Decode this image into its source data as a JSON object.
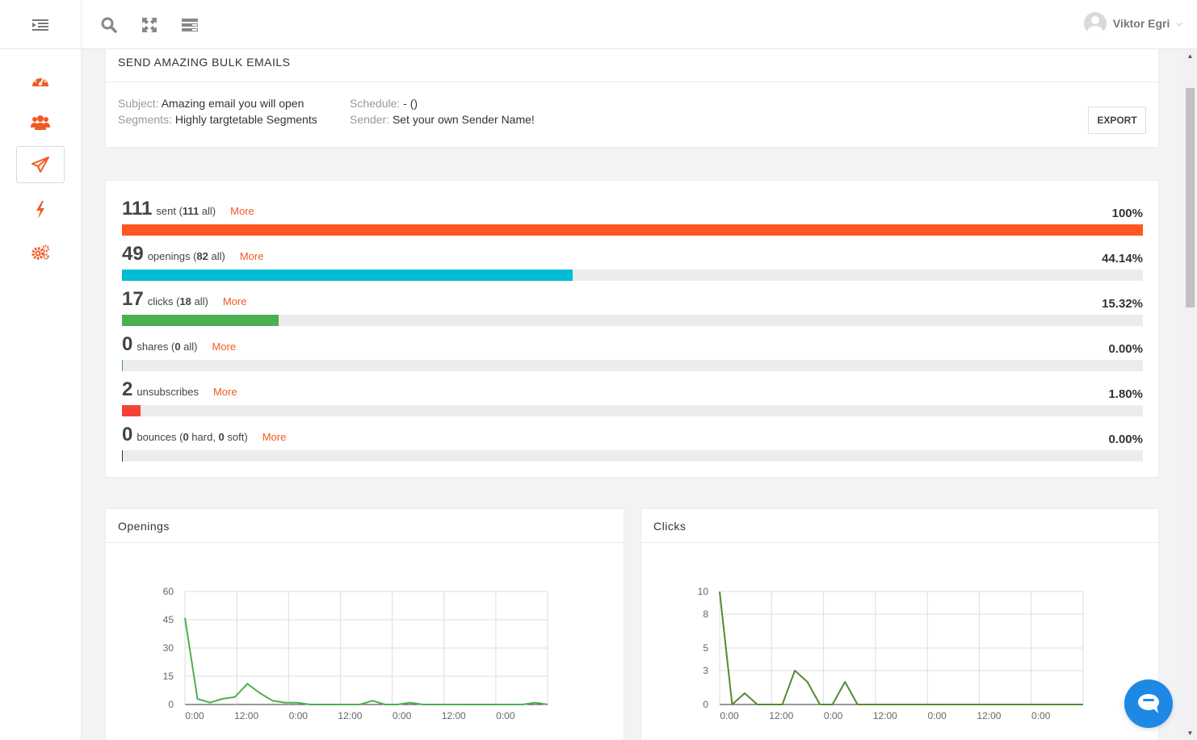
{
  "topbar": {
    "icons": [
      "menu-toggle-icon",
      "search-icon",
      "fullscreen-icon",
      "layout-icon"
    ],
    "user_name": "Viktor Egri",
    "caret": "⌵"
  },
  "sidebar": {
    "items": [
      {
        "icon": "dashboard-icon",
        "active": false
      },
      {
        "icon": "users-icon",
        "active": false
      },
      {
        "icon": "send-icon",
        "active": true
      },
      {
        "icon": "lightning-icon",
        "active": false
      },
      {
        "icon": "settings-icon",
        "active": false
      }
    ],
    "accent": "#f15a24"
  },
  "campaign": {
    "title": "SEND AMAZING BULK EMAILS",
    "subject_key": "Subject:",
    "subject_value": "Amazing email you will open",
    "segments_key": "Segments:",
    "segments_value": "Highly targtetable Segments",
    "schedule_key": "Schedule:",
    "schedule_value": "- ()",
    "sender_key": "Sender:",
    "sender_value": "Set your own Sender Name!",
    "export_label": "EXPORT"
  },
  "stats": [
    {
      "num": "111",
      "pre": "sent (",
      "bold1": "111",
      "mid": " all)",
      "bold2": "",
      "post": "",
      "more": "More",
      "pct": "100%",
      "fraction": 1.0,
      "color": "#ff5722"
    },
    {
      "num": "49",
      "pre": "openings (",
      "bold1": "82",
      "mid": " all)",
      "bold2": "",
      "post": "",
      "more": "More",
      "pct": "44.14%",
      "fraction": 0.4414,
      "color": "#00bcd4"
    },
    {
      "num": "17",
      "pre": "clicks (",
      "bold1": "18",
      "mid": " all)",
      "bold2": "",
      "post": "",
      "more": "More",
      "pct": "15.32%",
      "fraction": 0.1532,
      "color": "#4caf50"
    },
    {
      "num": "0",
      "pre": "shares (",
      "bold1": "0",
      "mid": " all)",
      "bold2": "",
      "post": "",
      "more": "More",
      "pct": "0.00%",
      "fraction": 0.0,
      "color": "#3f8fb5"
    },
    {
      "num": "2",
      "pre": "unsubscribes",
      "bold1": "",
      "mid": "",
      "bold2": "",
      "post": "",
      "more": "More",
      "pct": "1.80%",
      "fraction": 0.018,
      "color": "#f44336"
    },
    {
      "num": "0",
      "pre": "bounces (",
      "bold1": "0",
      "mid": " hard, ",
      "bold2": "0",
      "post": " soft)",
      "more": "More",
      "pct": "0.00%",
      "fraction": 0.0,
      "color": "#333333"
    }
  ],
  "chart_data": [
    {
      "type": "line",
      "title": "Openings",
      "x_tick_labels": [
        "0:00",
        "12:00",
        "0:00",
        "12:00",
        "0:00",
        "12:00",
        "0:00"
      ],
      "y_ticks": [
        0,
        15,
        30,
        45,
        60
      ],
      "ylim": [
        0,
        60
      ],
      "grid": true,
      "color": "#4caf50",
      "series": [
        {
          "values": [
            46,
            3,
            1,
            3,
            4,
            11,
            6,
            2,
            1,
            1,
            0,
            0,
            0,
            0,
            0,
            2,
            0,
            0,
            1,
            0,
            0,
            0,
            0,
            0,
            0,
            0,
            0,
            0,
            1,
            0
          ]
        }
      ]
    },
    {
      "type": "line",
      "title": "Clicks",
      "x_tick_labels": [
        "0:00",
        "12:00",
        "0:00",
        "12:00",
        "0:00",
        "12:00",
        "0:00"
      ],
      "y_ticks": [
        0,
        3,
        5,
        8,
        10
      ],
      "ylim": [
        0,
        10
      ],
      "grid": true,
      "color": "#558b2f",
      "series": [
        {
          "values": [
            10,
            0,
            1,
            0,
            0,
            0,
            3,
            2,
            0,
            0,
            2,
            0,
            0,
            0,
            0,
            0,
            0,
            0,
            0,
            0,
            0,
            0,
            0,
            0,
            0,
            0,
            0,
            0,
            0,
            0
          ]
        }
      ]
    }
  ]
}
